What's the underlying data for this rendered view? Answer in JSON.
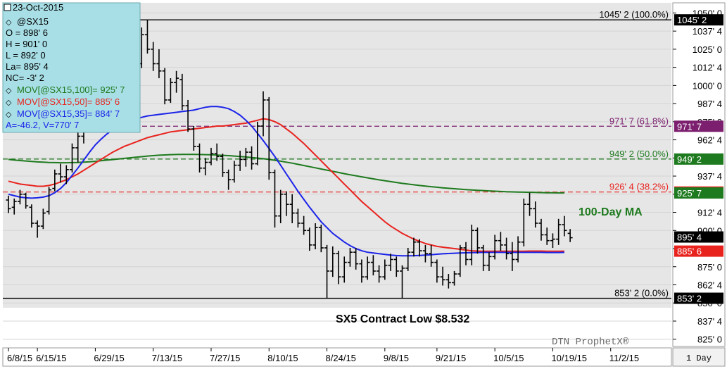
{
  "info_box": {
    "date": "23-Oct-2015",
    "symbol": "@SX15",
    "open": "O = 898' 6",
    "high": "H = 901' 0",
    "low": "L = 892' 0",
    "last": "La= 895' 4",
    "net_change": "NC= -3' 2",
    "ma100": "MOV[@SX15,100]= 925' 7",
    "ma50": "MOV[@SX15,50]= 885' 6",
    "ma35": "MOV[@SX15,35]= 884' 7",
    "av": "A=-46.2, V=770' 7"
  },
  "colors": {
    "ma100": "#1e7a1e",
    "ma50": "#e8231e",
    "ma35": "#1c24e8",
    "fib_purple": "#7b1f6e",
    "bars": "#000000",
    "info_bg": "#a8dfe6",
    "plot_bg": "#e6e6e6"
  },
  "annotations": {
    "ma100_label": "100-Day MA",
    "contract_low": "SX5 Contract Low $8.532",
    "watermark": "DTN ProphetX®",
    "interval": "1 Day"
  },
  "chart_data": {
    "type": "ohlc",
    "fib_levels": [
      {
        "label": "1045' 2 (100.0%)",
        "tag": "1045' 2",
        "value": 1045.25,
        "color": "#000000",
        "style": "solid"
      },
      {
        "label": "971' 7 (61.8%)",
        "tag": "971' 7",
        "value": 971.875,
        "color": "#7b1f6e",
        "style": "dashed"
      },
      {
        "label": "949' 2 (50.0%)",
        "tag": "949' 2",
        "value": 949.25,
        "color": "#1e7a1e",
        "style": "dashed"
      },
      {
        "label": "926' 4 (38.2%)",
        "tag": "926' 4",
        "value": 926.5,
        "color": "#e8231e",
        "style": "dashed"
      },
      {
        "label": "853' 2 (0.0%)",
        "tag": "853' 2",
        "value": 853.25,
        "color": "#000000",
        "style": "solid"
      }
    ],
    "price_tags": [
      {
        "text": "925' 7",
        "value": 925.875,
        "bg": "#1e7a1e"
      },
      {
        "text": "895' 4",
        "value": 895.5,
        "bg": "#000000"
      },
      {
        "text": "885' 6",
        "value": 885.75,
        "bg": "#e8231e"
      }
    ],
    "y_ticks": [
      {
        "label": "1050' 0",
        "value": 1050
      },
      {
        "label": "1037' 4",
        "value": 1037.5
      },
      {
        "label": "1025' 0",
        "value": 1025
      },
      {
        "label": "1012' 4",
        "value": 1012.5
      },
      {
        "label": "1000' 0",
        "value": 1000
      },
      {
        "label": "987' 4",
        "value": 987.5
      },
      {
        "label": "975' 0",
        "value": 975
      },
      {
        "label": "962' 4",
        "value": 962.5
      },
      {
        "label": "950' 0",
        "value": 950
      },
      {
        "label": "937' 4",
        "value": 937.5
      },
      {
        "label": "925' 0",
        "value": 925
      },
      {
        "label": "912' 4",
        "value": 912.5
      },
      {
        "label": "900' 0",
        "value": 900
      },
      {
        "label": "887' 4",
        "value": 887.5
      },
      {
        "label": "875' 0",
        "value": 875
      },
      {
        "label": "862' 4",
        "value": 862.5
      },
      {
        "label": "850' 0",
        "value": 850
      },
      {
        "label": "837' 4",
        "value": 837.5
      },
      {
        "label": "825' 0",
        "value": 825
      }
    ],
    "ylim": [
      820,
      1057
    ],
    "x_ticks": [
      {
        "label": "6/8/15",
        "i": 0
      },
      {
        "label": "6/15/15",
        "i": 5
      },
      {
        "label": "6/29/15",
        "i": 15
      },
      {
        "label": "7/13/15",
        "i": 25
      },
      {
        "label": "7/27/15",
        "i": 35
      },
      {
        "label": "8/10/15",
        "i": 45
      },
      {
        "label": "8/24/15",
        "i": 55
      },
      {
        "label": "9/8/15",
        "i": 65
      },
      {
        "label": "9/21/15",
        "i": 74
      },
      {
        "label": "10/5/15",
        "i": 84
      },
      {
        "label": "10/19/15",
        "i": 94
      },
      {
        "label": "11/2/15",
        "i": 104
      }
    ],
    "x_slots": 114,
    "bars": [
      {
        "o": 921,
        "h": 924,
        "l": 912,
        "c": 915
      },
      {
        "o": 916,
        "h": 922,
        "l": 911,
        "c": 920
      },
      {
        "o": 920,
        "h": 928,
        "l": 918,
        "c": 925
      },
      {
        "o": 925,
        "h": 926,
        "l": 915,
        "c": 917
      },
      {
        "o": 916,
        "h": 918,
        "l": 902,
        "c": 905
      },
      {
        "o": 905,
        "h": 907,
        "l": 895,
        "c": 903
      },
      {
        "o": 903,
        "h": 915,
        "l": 901,
        "c": 912
      },
      {
        "o": 913,
        "h": 930,
        "l": 911,
        "c": 928
      },
      {
        "o": 929,
        "h": 942,
        "l": 927,
        "c": 939
      },
      {
        "o": 939,
        "h": 946,
        "l": 933,
        "c": 937
      },
      {
        "o": 937,
        "h": 945,
        "l": 932,
        "c": 942
      },
      {
        "o": 942,
        "h": 960,
        "l": 940,
        "c": 957
      },
      {
        "o": 957,
        "h": 970,
        "l": 947,
        "c": 965
      },
      {
        "o": 965,
        "h": 977,
        "l": 960,
        "c": 972
      },
      {
        "o": 973,
        "h": 1036,
        "l": 968,
        "c": 1032
      },
      {
        "o": 1030,
        "h": 1038,
        "l": 1015,
        "c": 1020
      },
      {
        "o": 1020,
        "h": 1035,
        "l": 1010,
        "c": 1030
      },
      {
        "o": 1028,
        "h": 1031,
        "l": 1005,
        "c": 1012
      },
      {
        "o": 1012,
        "h": 1020,
        "l": 997,
        "c": 1000
      },
      {
        "o": 1000,
        "h": 1012,
        "l": 980,
        "c": 985
      },
      {
        "o": 986,
        "h": 1022,
        "l": 985,
        "c": 1018
      },
      {
        "o": 1018,
        "h": 1033,
        "l": 1015,
        "c": 1028
      },
      {
        "o": 1028,
        "h": 1032,
        "l": 1010,
        "c": 1015
      },
      {
        "o": 1015,
        "h": 1040,
        "l": 1012,
        "c": 1035
      },
      {
        "o": 1035,
        "h": 1045,
        "l": 1022,
        "c": 1025
      },
      {
        "o": 1025,
        "h": 1030,
        "l": 1010,
        "c": 1015
      },
      {
        "o": 1015,
        "h": 1025,
        "l": 1005,
        "c": 1010
      },
      {
        "o": 1010,
        "h": 1012,
        "l": 987,
        "c": 990
      },
      {
        "o": 990,
        "h": 1005,
        "l": 988,
        "c": 1002
      },
      {
        "o": 1002,
        "h": 1010,
        "l": 995,
        "c": 1005
      },
      {
        "o": 1004,
        "h": 1008,
        "l": 983,
        "c": 986
      },
      {
        "o": 986,
        "h": 990,
        "l": 968,
        "c": 970
      },
      {
        "o": 970,
        "h": 972,
        "l": 955,
        "c": 958
      },
      {
        "o": 958,
        "h": 960,
        "l": 940,
        "c": 943
      },
      {
        "o": 943,
        "h": 950,
        "l": 938,
        "c": 947
      },
      {
        "o": 947,
        "h": 957,
        "l": 945,
        "c": 953
      },
      {
        "o": 953,
        "h": 960,
        "l": 948,
        "c": 951
      },
      {
        "o": 951,
        "h": 953,
        "l": 937,
        "c": 940
      },
      {
        "o": 940,
        "h": 942,
        "l": 928,
        "c": 935
      },
      {
        "o": 935,
        "h": 948,
        "l": 933,
        "c": 945
      },
      {
        "o": 945,
        "h": 955,
        "l": 941,
        "c": 949
      },
      {
        "o": 949,
        "h": 957,
        "l": 944,
        "c": 954
      },
      {
        "o": 954,
        "h": 958,
        "l": 942,
        "c": 946
      },
      {
        "o": 946,
        "h": 975,
        "l": 945,
        "c": 972
      },
      {
        "o": 972,
        "h": 996,
        "l": 965,
        "c": 990
      },
      {
        "o": 990,
        "h": 992,
        "l": 935,
        "c": 940
      },
      {
        "o": 940,
        "h": 942,
        "l": 902,
        "c": 910
      },
      {
        "o": 910,
        "h": 928,
        "l": 905,
        "c": 925
      },
      {
        "o": 925,
        "h": 927,
        "l": 910,
        "c": 918
      },
      {
        "o": 918,
        "h": 925,
        "l": 905,
        "c": 912
      },
      {
        "o": 912,
        "h": 915,
        "l": 902,
        "c": 905
      },
      {
        "o": 905,
        "h": 910,
        "l": 897,
        "c": 900
      },
      {
        "o": 900,
        "h": 902,
        "l": 886,
        "c": 890
      },
      {
        "o": 890,
        "h": 905,
        "l": 887,
        "c": 902
      },
      {
        "o": 902,
        "h": 904,
        "l": 885,
        "c": 888
      },
      {
        "o": 888,
        "h": 890,
        "l": 853,
        "c": 872
      },
      {
        "o": 872,
        "h": 889,
        "l": 868,
        "c": 884
      },
      {
        "o": 884,
        "h": 886,
        "l": 863,
        "c": 868
      },
      {
        "o": 868,
        "h": 882,
        "l": 864,
        "c": 878
      },
      {
        "o": 878,
        "h": 888,
        "l": 875,
        "c": 885
      },
      {
        "o": 885,
        "h": 888,
        "l": 873,
        "c": 877
      },
      {
        "o": 877,
        "h": 880,
        "l": 864,
        "c": 868
      },
      {
        "o": 868,
        "h": 882,
        "l": 866,
        "c": 878
      },
      {
        "o": 878,
        "h": 883,
        "l": 869,
        "c": 872
      },
      {
        "o": 872,
        "h": 876,
        "l": 864,
        "c": 868
      },
      {
        "o": 868,
        "h": 880,
        "l": 866,
        "c": 876
      },
      {
        "o": 876,
        "h": 884,
        "l": 872,
        "c": 880
      },
      {
        "o": 880,
        "h": 882,
        "l": 868,
        "c": 872
      },
      {
        "o": 872,
        "h": 876,
        "l": 853,
        "c": 874
      },
      {
        "o": 874,
        "h": 888,
        "l": 872,
        "c": 885
      },
      {
        "o": 885,
        "h": 895,
        "l": 882,
        "c": 892
      },
      {
        "o": 892,
        "h": 894,
        "l": 882,
        "c": 886
      },
      {
        "o": 886,
        "h": 890,
        "l": 878,
        "c": 884
      },
      {
        "o": 884,
        "h": 890,
        "l": 875,
        "c": 878
      },
      {
        "o": 878,
        "h": 880,
        "l": 864,
        "c": 868
      },
      {
        "o": 868,
        "h": 875,
        "l": 862,
        "c": 866
      },
      {
        "o": 866,
        "h": 870,
        "l": 860,
        "c": 864
      },
      {
        "o": 864,
        "h": 872,
        "l": 862,
        "c": 870
      },
      {
        "o": 870,
        "h": 890,
        "l": 868,
        "c": 888
      },
      {
        "o": 888,
        "h": 892,
        "l": 876,
        "c": 880
      },
      {
        "o": 880,
        "h": 904,
        "l": 876,
        "c": 900
      },
      {
        "o": 900,
        "h": 902,
        "l": 884,
        "c": 888
      },
      {
        "o": 888,
        "h": 890,
        "l": 872,
        "c": 876
      },
      {
        "o": 876,
        "h": 885,
        "l": 872,
        "c": 882
      },
      {
        "o": 882,
        "h": 897,
        "l": 880,
        "c": 893
      },
      {
        "o": 893,
        "h": 899,
        "l": 886,
        "c": 890
      },
      {
        "o": 890,
        "h": 895,
        "l": 880,
        "c": 884
      },
      {
        "o": 884,
        "h": 892,
        "l": 872,
        "c": 880
      },
      {
        "o": 880,
        "h": 896,
        "l": 878,
        "c": 892
      },
      {
        "o": 892,
        "h": 922,
        "l": 889,
        "c": 918
      },
      {
        "o": 918,
        "h": 926,
        "l": 910,
        "c": 915
      },
      {
        "o": 915,
        "h": 920,
        "l": 902,
        "c": 905
      },
      {
        "o": 905,
        "h": 908,
        "l": 893,
        "c": 897
      },
      {
        "o": 897,
        "h": 902,
        "l": 890,
        "c": 893
      },
      {
        "o": 893,
        "h": 898,
        "l": 888,
        "c": 894
      },
      {
        "o": 894,
        "h": 908,
        "l": 890,
        "c": 904
      },
      {
        "o": 904,
        "h": 910,
        "l": 896,
        "c": 900
      },
      {
        "o": 898,
        "h": 901,
        "l": 892,
        "c": 895
      }
    ],
    "ma100_values": [
      949,
      948.6,
      948.2,
      947.9,
      947.6,
      947.3,
      947.1,
      946.9,
      946.8,
      946.7,
      946.7,
      946.8,
      946.9,
      947.1,
      947.4,
      947.7,
      948.1,
      948.5,
      948.9,
      949.3,
      949.7,
      950.1,
      950.5,
      950.9,
      951.3,
      951.6,
      951.9,
      952.1,
      952.3,
      952.4,
      952.5,
      952.5,
      952.5,
      952.4,
      952.3,
      952.2,
      952.0,
      951.8,
      951.6,
      951.3,
      951.0,
      950.7,
      950.3,
      949.9,
      949.5,
      949.0,
      948.4,
      947.8,
      947.1,
      946.4,
      945.6,
      944.8,
      944.0,
      943.2,
      942.4,
      941.6,
      940.8,
      940.0,
      939.2,
      938.4,
      937.7,
      937.0,
      936.3,
      935.6,
      934.9,
      934.3,
      933.7,
      933.1,
      932.5,
      932.0,
      931.5,
      931.0,
      930.6,
      930.2,
      929.8,
      929.4,
      929.1,
      928.8,
      928.5,
      928.2,
      927.9,
      927.7,
      927.5,
      927.3,
      927.1,
      926.9,
      926.7,
      926.6,
      926.5,
      926.4,
      926.3,
      926.2,
      926.1,
      926.0,
      926.0,
      925.9,
      925.9
    ],
    "ma50_values": [
      934,
      933,
      932,
      931.5,
      931,
      930.5,
      930.5,
      931,
      932,
      933.5,
      935,
      937,
      939,
      941.5,
      944,
      946.5,
      949,
      951.5,
      954,
      956,
      958,
      959.5,
      961,
      962.5,
      964,
      965,
      966,
      967,
      968,
      968.5,
      969,
      969.5,
      970,
      970.5,
      971,
      971.5,
      972,
      972,
      972.5,
      973,
      973.5,
      974,
      975,
      976,
      977,
      976.5,
      975,
      973,
      970,
      967,
      963.5,
      960,
      956,
      952,
      948,
      944,
      940,
      936,
      932,
      928,
      924,
      920,
      916.5,
      913,
      909.5,
      906,
      903,
      900.5,
      898,
      896,
      894,
      892.5,
      891,
      890,
      889,
      888.5,
      888,
      887.5,
      887,
      886.5,
      886,
      885.8,
      885.7,
      885.7,
      885.7,
      885.7,
      885.7,
      885.7,
      885.7,
      885.7,
      885.8,
      885.8,
      885.8,
      885.7,
      885.7,
      885.7,
      885.75
    ],
    "ma35_values": [
      925,
      924,
      923,
      922.5,
      922.3,
      922.5,
      923,
      924,
      926,
      929,
      933,
      938,
      943,
      948.5,
      954,
      959,
      963,
      966.5,
      969.5,
      972,
      974,
      975.5,
      977,
      978,
      979,
      979.5,
      980,
      980.5,
      981,
      981.5,
      982,
      982.5,
      983,
      984,
      985,
      985.5,
      985.5,
      985,
      984,
      982,
      979.5,
      976,
      972,
      967,
      962,
      956.5,
      951,
      945,
      939,
      933,
      927,
      921.5,
      916,
      911,
      906,
      902,
      898,
      895,
      892,
      889.5,
      887.5,
      886,
      885,
      884.5,
      884,
      883.5,
      883,
      882.7,
      882.5,
      882.5,
      882.6,
      882.8,
      883,
      883.3,
      883.6,
      883.9,
      884.1,
      884.3,
      884.5,
      884.6,
      884.7,
      884.8,
      884.9,
      884.9,
      884.9,
      884.9,
      884.9,
      884.9,
      884.9,
      884.9,
      884.9,
      884.9,
      884.9,
      884.8,
      884.8,
      884.8,
      884.9
    ]
  }
}
